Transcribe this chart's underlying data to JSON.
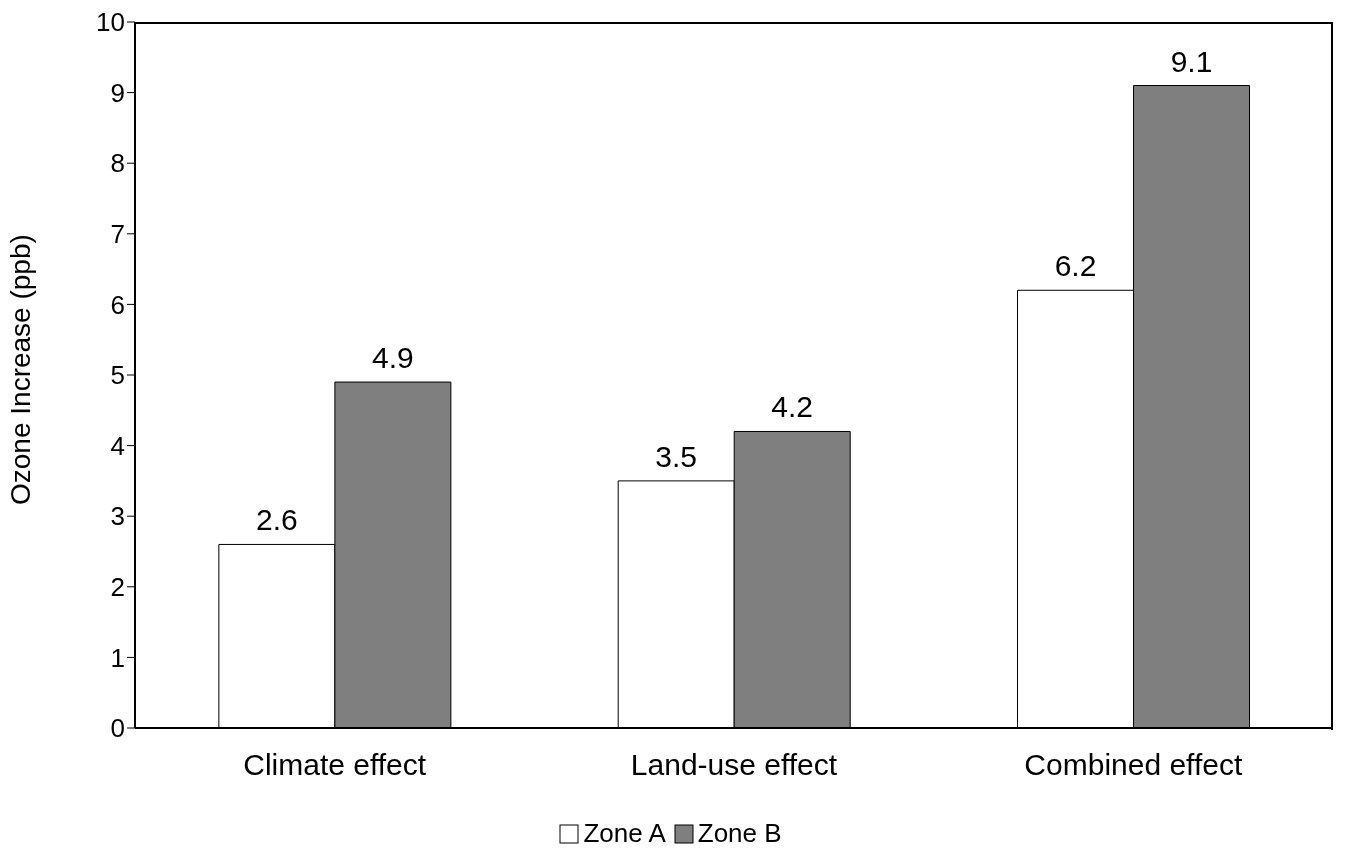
{
  "chart_data": {
    "type": "bar",
    "ylabel": "Ozone Increase (ppb)",
    "categories": [
      "Climate effect",
      "Land-use effect",
      "Combined effect"
    ],
    "series": [
      {
        "name": "Zone A",
        "color": "#ffffff",
        "values": [
          2.6,
          3.5,
          6.2
        ]
      },
      {
        "name": "Zone B",
        "color": "#7f7f7f",
        "values": [
          4.9,
          4.2,
          9.1
        ]
      }
    ],
    "ylim": [
      0,
      10
    ],
    "yticks": [
      0,
      1,
      2,
      3,
      4,
      5,
      6,
      7,
      8,
      9,
      10
    ],
    "data_labels": true,
    "grid": false,
    "legend": "bottom"
  }
}
